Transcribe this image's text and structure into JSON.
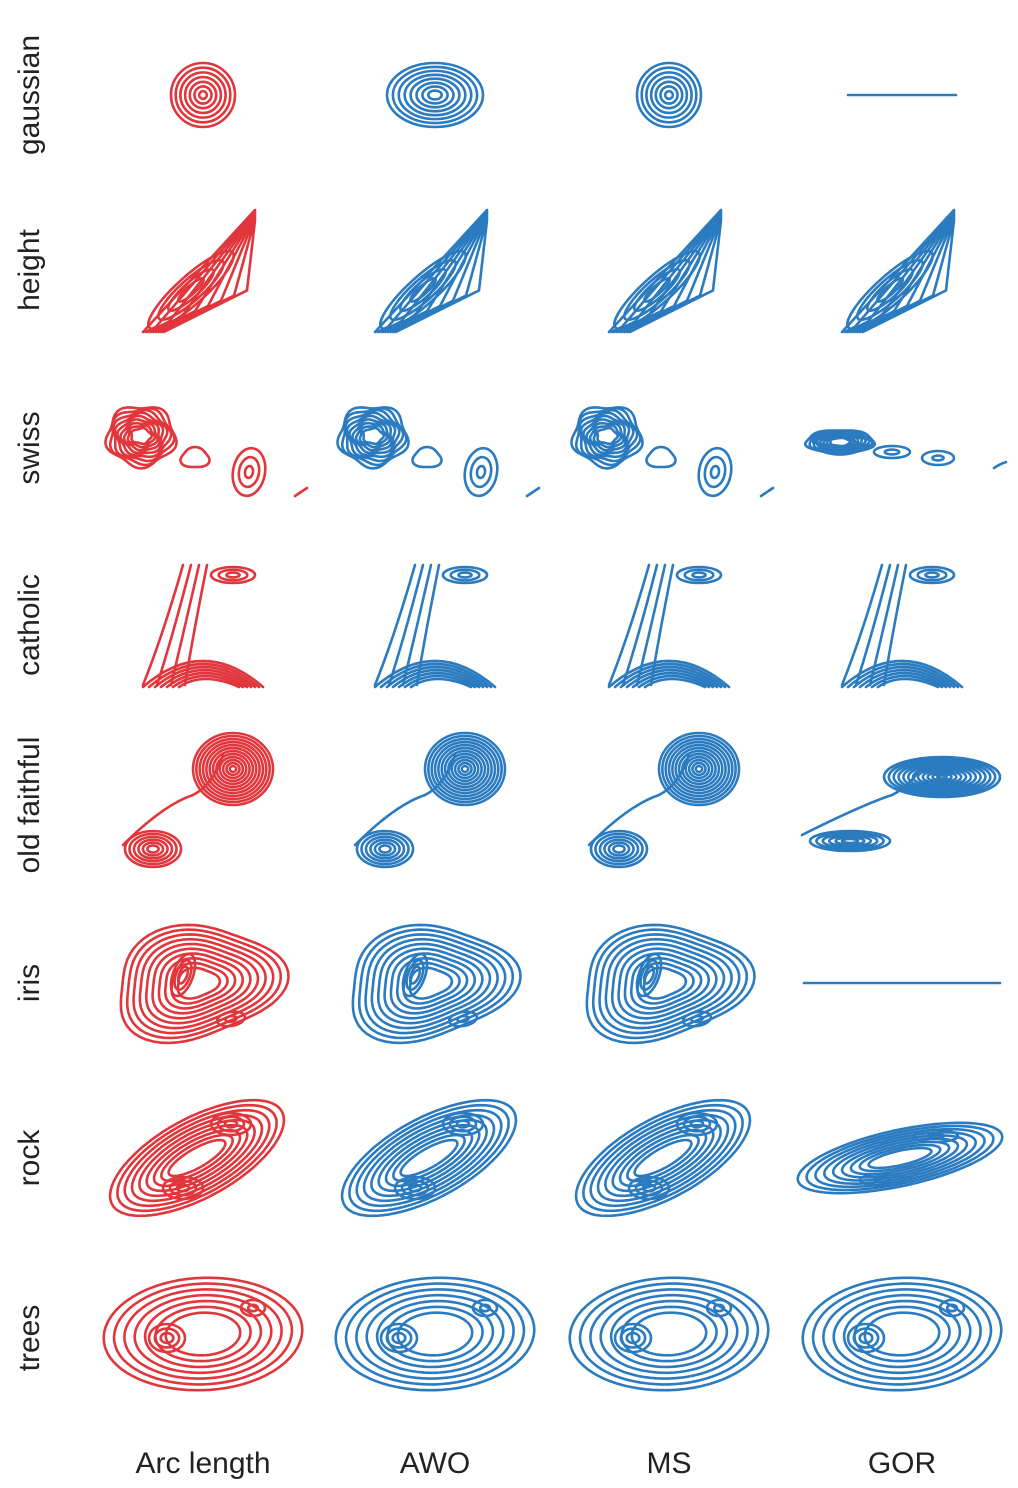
{
  "rows": [
    {
      "label": "gaussian"
    },
    {
      "label": "height"
    },
    {
      "label": "swiss"
    },
    {
      "label": "catholic"
    },
    {
      "label": "old faithful"
    },
    {
      "label": "iris"
    },
    {
      "label": "rock"
    },
    {
      "label": "trees"
    }
  ],
  "columns": [
    {
      "label": "Arc length"
    },
    {
      "label": "AWO"
    },
    {
      "label": "MS"
    },
    {
      "label": "GOR"
    }
  ],
  "colors": {
    "arc_length": "#e0363c",
    "other_methods": "#2b7bc0",
    "text": "#222222"
  },
  "panels": [
    [
      {
        "shape": "circle"
      },
      {
        "shape": "ellipse"
      },
      {
        "shape": "circle"
      },
      {
        "shape": "flat-line"
      }
    ],
    [
      {
        "shape": "diagonal-ridge"
      },
      {
        "shape": "diagonal-ridge"
      },
      {
        "shape": "diagonal-ridge"
      },
      {
        "shape": "diagonal-ridge"
      }
    ],
    [
      {
        "shape": "clustered-blobs"
      },
      {
        "shape": "clustered-blobs"
      },
      {
        "shape": "clustered-blobs"
      },
      {
        "shape": "flattened-blobs"
      }
    ],
    [
      {
        "shape": "valley-contours"
      },
      {
        "shape": "valley-contours"
      },
      {
        "shape": "valley-contours"
      },
      {
        "shape": "valley-contours"
      }
    ],
    [
      {
        "shape": "bimodal-diagonal"
      },
      {
        "shape": "bimodal-diagonal"
      },
      {
        "shape": "bimodal-diagonal"
      },
      {
        "shape": "bimodal-flattened"
      }
    ],
    [
      {
        "shape": "trimodal-blob"
      },
      {
        "shape": "trimodal-blob"
      },
      {
        "shape": "trimodal-blob"
      },
      {
        "shape": "flat-line"
      }
    ],
    [
      {
        "shape": "bimodal-diagonal-bands"
      },
      {
        "shape": "bimodal-diagonal-bands"
      },
      {
        "shape": "bimodal-diagonal-bands"
      },
      {
        "shape": "bimodal-flattened-bands"
      }
    ],
    [
      {
        "shape": "bimodal-rounded"
      },
      {
        "shape": "bimodal-rounded"
      },
      {
        "shape": "bimodal-rounded"
      },
      {
        "shape": "bimodal-rounded"
      }
    ]
  ]
}
